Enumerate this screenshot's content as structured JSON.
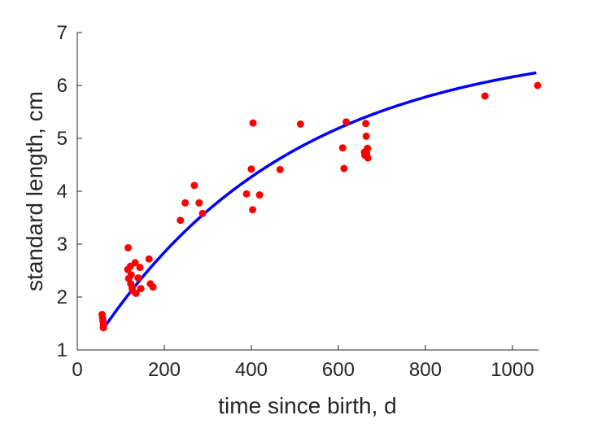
{
  "chart_data": {
    "type": "scatter",
    "xlabel": "time since birth, d",
    "ylabel": "standard length, cm",
    "xlim": [
      0,
      1060
    ],
    "ylim": [
      1,
      7
    ],
    "xticks": [
      "0",
      "200",
      "400",
      "600",
      "800",
      "1000"
    ],
    "yticks": [
      "1",
      "2",
      "3",
      "4",
      "5",
      "6",
      "7"
    ],
    "grid": false,
    "colors": {
      "points": "#ff0000",
      "fit": "#0000ff",
      "axis": "#262626"
    },
    "series": [
      {
        "kind": "scatter",
        "points": [
          [
            57,
            1.67
          ],
          [
            58,
            1.61
          ],
          [
            59,
            1.55
          ],
          [
            60,
            1.48
          ],
          [
            60,
            1.42
          ],
          [
            117,
            2.93
          ],
          [
            116,
            2.52
          ],
          [
            118,
            2.35
          ],
          [
            122,
            2.58
          ],
          [
            124,
            2.42
          ],
          [
            123,
            2.25
          ],
          [
            126,
            2.18
          ],
          [
            127,
            2.12
          ],
          [
            133,
            2.65
          ],
          [
            135,
            2.07
          ],
          [
            140,
            2.36
          ],
          [
            144,
            2.56
          ],
          [
            146,
            2.16
          ],
          [
            165,
            2.72
          ],
          [
            168,
            2.25
          ],
          [
            174,
            2.19
          ],
          [
            237,
            3.45
          ],
          [
            248,
            3.78
          ],
          [
            269,
            4.11
          ],
          [
            280,
            3.78
          ],
          [
            288,
            3.58
          ],
          [
            389,
            3.95
          ],
          [
            400,
            4.42
          ],
          [
            403,
            3.65
          ],
          [
            404,
            5.29
          ],
          [
            419,
            3.93
          ],
          [
            466,
            4.41
          ],
          [
            513,
            5.27
          ],
          [
            610,
            4.82
          ],
          [
            613,
            4.43
          ],
          [
            618,
            5.31
          ],
          [
            660,
            4.74
          ],
          [
            661,
            4.68
          ],
          [
            663,
            5.28
          ],
          [
            664,
            5.04
          ],
          [
            665,
            4.72
          ],
          [
            667,
            4.81
          ],
          [
            668,
            4.63
          ],
          [
            937,
            5.8
          ],
          [
            1058,
            6.0
          ]
        ]
      },
      {
        "kind": "line",
        "x_start": 60,
        "x_end": 1055,
        "L_inf": 6.85,
        "L0": 1.4,
        "k": 0.0022,
        "points": [
          [
            60,
            1.4
          ],
          [
            100,
            1.85
          ],
          [
            200,
            2.87
          ],
          [
            300,
            3.7
          ],
          [
            400,
            4.37
          ],
          [
            500,
            4.91
          ],
          [
            600,
            5.35
          ],
          [
            700,
            5.7
          ],
          [
            800,
            5.99
          ],
          [
            900,
            6.22
          ],
          [
            1000,
            6.41
          ],
          [
            1055,
            6.5
          ]
        ]
      }
    ]
  }
}
